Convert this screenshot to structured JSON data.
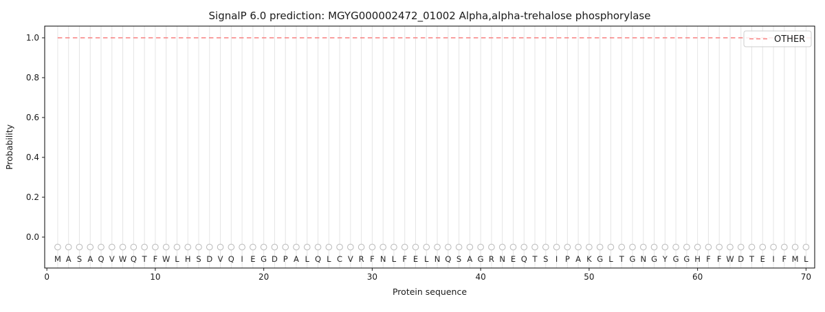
{
  "chart_data": {
    "type": "line",
    "title": "SignalP 6.0 prediction: MGYG000002472_01002 Alpha,alpha-trehalose phosphorylase",
    "xlabel": "Protein sequence",
    "ylabel": "Probability",
    "xlim": [
      -0.2,
      70.8
    ],
    "ylim": [
      -0.155,
      1.06
    ],
    "xticks": [
      0,
      10,
      20,
      30,
      40,
      50,
      60,
      70
    ],
    "yticks": [
      0.0,
      0.2,
      0.4,
      0.6,
      0.8,
      1.0
    ],
    "grid": "vertical line at every residue position",
    "legend_position": "upper right",
    "series": [
      {
        "name": "OTHER",
        "color": "#f87e7e",
        "line_style": "dashed",
        "x_start": 1,
        "x_end": 70,
        "value": 1.0
      }
    ],
    "sequence": "MASAQVWQTFWLHSDVQIEGDPALQLCVRFNLFELNQSAGRNEQTSIPAKGLTGNGYGGHFFWDTEIFML",
    "sequence_marker": {
      "shape": "open-circle",
      "y": -0.05,
      "color": "#b9b9b9"
    }
  }
}
